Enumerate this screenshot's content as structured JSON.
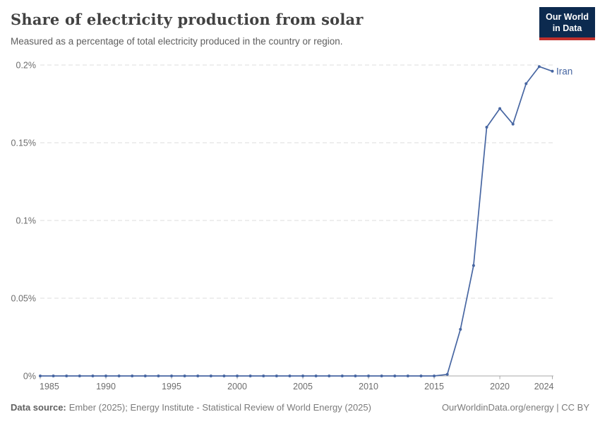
{
  "header": {
    "title": "Share of electricity production from solar",
    "subtitle": "Measured as a percentage of total electricity produced in the country or region.",
    "logo_line1": "Our World",
    "logo_line2": "in Data"
  },
  "chart_data": {
    "type": "line",
    "title": "Share of electricity production from solar",
    "unit": "%",
    "xlabel": "",
    "ylabel": "",
    "xlim": [
      1985,
      2024
    ],
    "ylim": [
      0,
      0.2
    ],
    "grid": "horizontal-dashed",
    "legend_position": "end-of-line-label",
    "x_tick_values": [
      1985,
      1990,
      1995,
      2000,
      2005,
      2010,
      2015,
      2020,
      2024
    ],
    "x_tick_labels": [
      "1985",
      "1990",
      "1995",
      "2000",
      "2005",
      "2010",
      "2015",
      "2020",
      "2024"
    ],
    "y_tick_values": [
      0,
      0.05,
      0.1,
      0.15,
      0.2
    ],
    "y_tick_labels": [
      "0%",
      "0.05%",
      "0.1%",
      "0.15%",
      "0.2%"
    ],
    "series": [
      {
        "name": "Iran",
        "color": "#4766a2",
        "x": [
          1985,
          1986,
          1987,
          1988,
          1989,
          1990,
          1991,
          1992,
          1993,
          1994,
          1995,
          1996,
          1997,
          1998,
          1999,
          2000,
          2001,
          2002,
          2003,
          2004,
          2005,
          2006,
          2007,
          2008,
          2009,
          2010,
          2011,
          2012,
          2013,
          2014,
          2015,
          2016,
          2017,
          2018,
          2019,
          2020,
          2021,
          2022,
          2023,
          2024
        ],
        "values": [
          0,
          0,
          0,
          0,
          0,
          0,
          0,
          0,
          0,
          0,
          0,
          0,
          0,
          0,
          0,
          0,
          0,
          0,
          0,
          0,
          0,
          0,
          0,
          0,
          0,
          0,
          0,
          0,
          0,
          0,
          0,
          0.001,
          0.03,
          0.071,
          0.16,
          0.172,
          0.162,
          0.188,
          0.199,
          0.196
        ]
      }
    ]
  },
  "footer": {
    "source_label": "Data source:",
    "source_text": "Ember (2025); Energy Institute - Statistical Review of World Energy (2025)",
    "attribution": "OurWorldinData.org/energy | CC BY"
  },
  "colors": {
    "line": "#4766a2",
    "gridline": "#dcdcdc",
    "axis": "#a8a8a8",
    "tick_label": "#6d6d6d",
    "logo_bg": "#0c2a4f",
    "logo_accent": "#c0302c"
  }
}
